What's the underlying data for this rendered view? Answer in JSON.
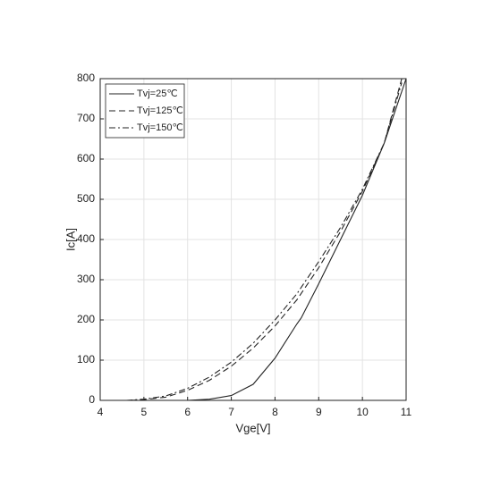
{
  "chart_data": {
    "type": "line",
    "x_label": "Vge[V]",
    "y_label": "Ic[A]",
    "xlim": [
      4,
      11
    ],
    "xticks": [
      4,
      5,
      6,
      7,
      8,
      9,
      10,
      11
    ],
    "ylim": [
      0,
      800
    ],
    "yticks": [
      0,
      100,
      200,
      300,
      400,
      500,
      600,
      700,
      800
    ],
    "grid": true,
    "legend": "upper left",
    "series": [
      {
        "name": "Tvj=25℃",
        "color": "#222222",
        "dash": "solid",
        "x": [
          6.0,
          6.5,
          7.0,
          7.5,
          8.0,
          8.5,
          8.6,
          9.0,
          9.5,
          10.0,
          10.5,
          11.0
        ],
        "values": [
          0,
          3,
          12,
          40,
          105,
          190,
          205,
          290,
          400,
          510,
          640,
          800
        ]
      },
      {
        "name": "Tvj=125℃",
        "color": "#222222",
        "dash": "dashed",
        "x": [
          4.7,
          5.0,
          5.5,
          6.0,
          6.5,
          7.0,
          7.5,
          8.0,
          8.5,
          9.0,
          9.5,
          10.0,
          10.5,
          10.9
        ],
        "values": [
          0,
          2,
          8,
          25,
          50,
          85,
          130,
          185,
          250,
          330,
          420,
          520,
          640,
          800
        ]
      },
      {
        "name": "Tvj=150℃",
        "color": "#222222",
        "dash": "dashdot",
        "x": [
          4.6,
          5.0,
          5.5,
          6.0,
          6.5,
          7.0,
          7.5,
          8.0,
          8.5,
          9.0,
          9.5,
          10.0,
          10.5,
          10.9
        ],
        "values": [
          0,
          3,
          11,
          30,
          58,
          95,
          142,
          200,
          265,
          345,
          430,
          525,
          640,
          790
        ]
      }
    ]
  }
}
